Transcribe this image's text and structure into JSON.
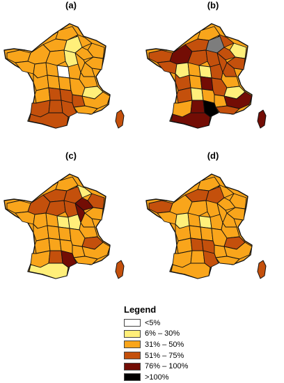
{
  "panels": [
    {
      "label": "(a)",
      "regions": [
        "c2",
        "c2",
        "c2",
        "c2",
        "c1",
        "c2",
        "c2",
        "c2",
        "c2",
        "c2",
        "c1",
        "c2",
        "c2",
        "c2",
        "c2",
        "c2",
        "c0",
        "c2",
        "c2",
        "c2",
        "c2",
        "c2",
        "c2",
        "c1",
        "c2",
        "c3",
        "c3",
        "c3",
        "c2",
        "c3",
        "c3",
        "c3",
        "c2",
        "c3"
      ],
      "corsica": "c3"
    },
    {
      "label": "(b)",
      "regions": [
        "c2",
        "c3",
        "c1",
        "c3",
        "c5",
        "c3",
        "c3",
        "c3",
        "c4",
        "c3",
        "c3",
        "c3",
        "c3",
        "c3",
        "c1",
        "c2",
        "c1",
        "c3",
        "c2",
        "c3",
        "c2",
        "c4",
        "c3",
        "c1",
        "c3",
        "c1",
        "c2",
        "c2",
        "c4",
        "c2",
        "c4",
        "c6",
        "c3",
        "c4"
      ],
      "corsica": "c4"
    },
    {
      "label": "(c)",
      "regions": [
        "c2",
        "c1",
        "c3",
        "c3",
        "c3",
        "c4",
        "c2",
        "c2",
        "c3",
        "c3",
        "c3",
        "c4",
        "c2",
        "c2",
        "c2",
        "c2",
        "c1",
        "c1",
        "c2",
        "c2",
        "c2",
        "c2",
        "c2",
        "c3",
        "c2",
        "c2",
        "c2",
        "c2",
        "c2",
        "c2",
        "c3",
        "c4",
        "c2",
        "c1"
      ],
      "corsica": "c3"
    },
    {
      "label": "(d)",
      "regions": [
        "c2",
        "c2",
        "c2",
        "c3",
        "c3",
        "c2",
        "c2",
        "c3",
        "c2",
        "c2",
        "c2",
        "c2",
        "c2",
        "c2",
        "c1",
        "c2",
        "c1",
        "c2",
        "c2",
        "c2",
        "c2",
        "c2",
        "c2",
        "c3",
        "c2",
        "c3",
        "c3",
        "c2",
        "c2",
        "c2",
        "c2",
        "c3",
        "c2",
        "c2"
      ],
      "corsica": "c3"
    }
  ],
  "legend": {
    "title": "Legend",
    "items": [
      {
        "label": "<5%",
        "color": "#ffffff"
      },
      {
        "label": "6% – 30%",
        "color": "#ffef7a"
      },
      {
        "label": "31% – 50%",
        "color": "#f9a51b"
      },
      {
        "label": "51% – 75%",
        "color": "#c4500c"
      },
      {
        "label": "76% – 100%",
        "color": "#730d05"
      },
      {
        "label": ">100%",
        "color": "#000000"
      }
    ]
  },
  "colors": {
    "c0": "#ffffff",
    "c1": "#ffef7a",
    "c2": "#f9a51b",
    "c3": "#c4500c",
    "c4": "#730d05",
    "c5": "#7d7d7d",
    "c6": "#000000"
  }
}
